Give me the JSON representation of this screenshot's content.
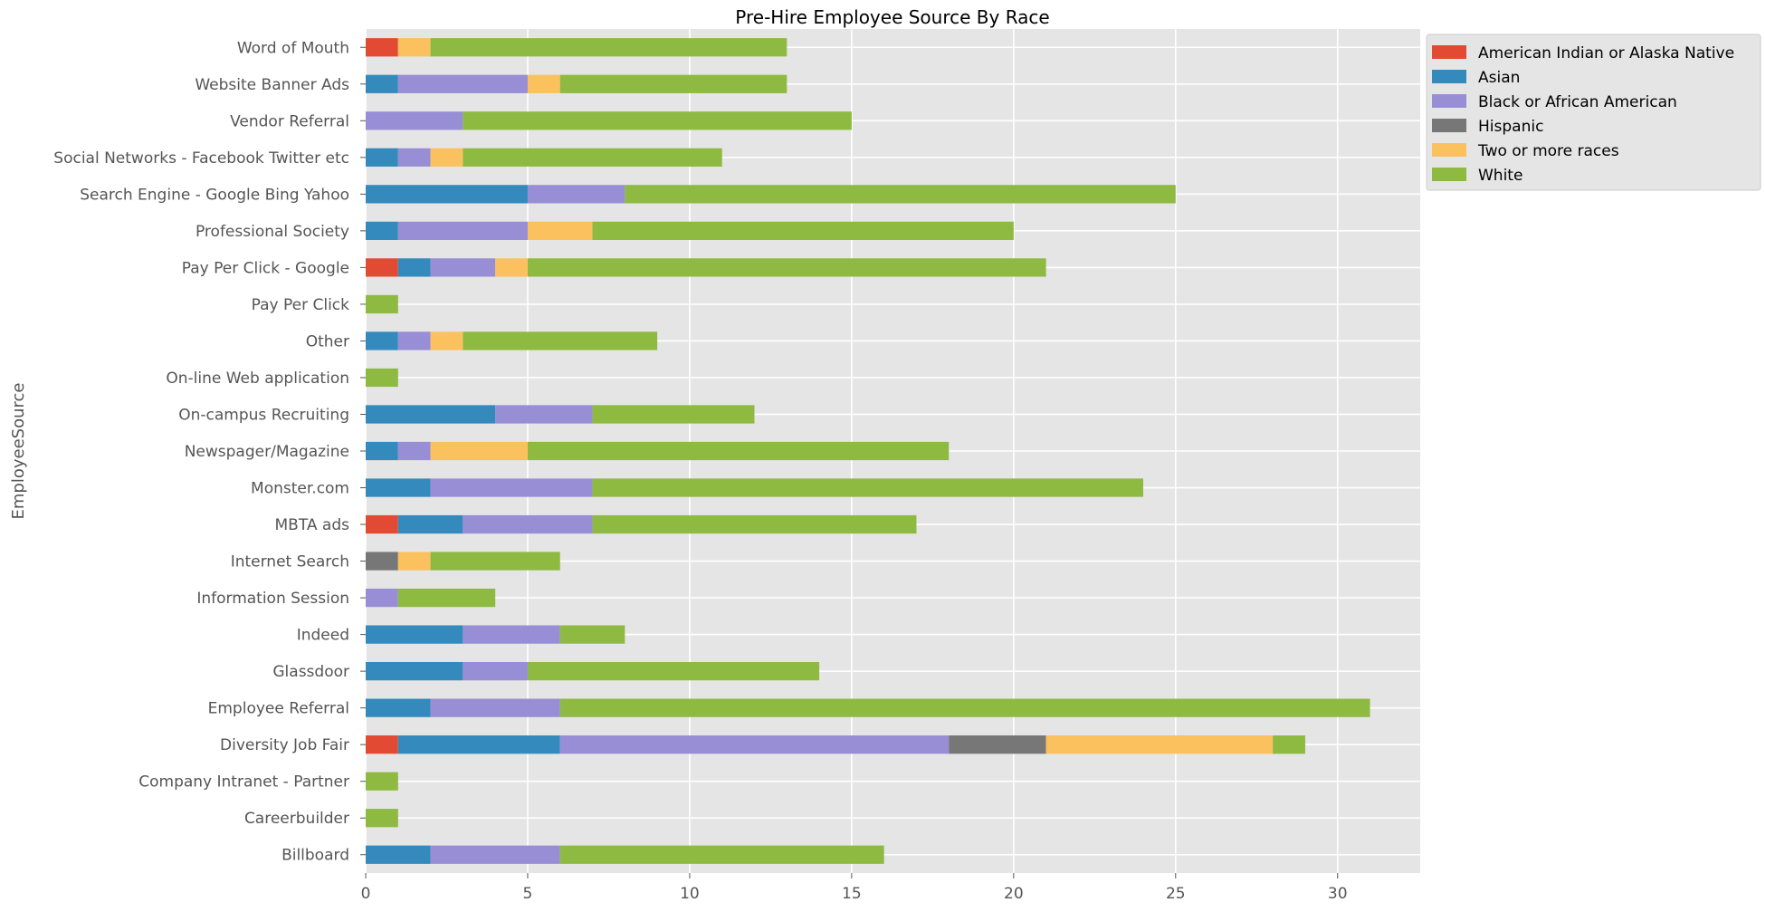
{
  "chart_data": {
    "type": "bar",
    "orientation": "horizontal",
    "stacked": true,
    "title": "Pre-Hire Employee Source By Race",
    "xlabel": "",
    "ylabel": "EmployeeSource",
    "xlim": [
      0,
      32.55
    ],
    "xticks": [
      0,
      5,
      10,
      15,
      20,
      25,
      30
    ],
    "grid": true,
    "legend_position": "top-right, outside plot",
    "colors": {
      "plot_background": "#E5E5E5",
      "grid": "#FFFFFF",
      "text": "#555555",
      "title": "#000000"
    },
    "categories": [
      "Billboard",
      "Careerbuilder",
      "Company Intranet - Partner",
      "Diversity Job Fair",
      "Employee Referral",
      "Glassdoor",
      "Indeed",
      "Information Session",
      "Internet Search",
      "MBTA ads",
      "Monster.com",
      "Newspager/Magazine",
      "On-campus Recruiting",
      "On-line Web application",
      "Other",
      "Pay Per Click",
      "Pay Per Click - Google",
      "Professional Society",
      "Search Engine - Google Bing Yahoo",
      "Social Networks - Facebook Twitter etc",
      "Vendor Referral",
      "Website Banner Ads",
      "Word of Mouth"
    ],
    "series": [
      {
        "name": "American Indian or Alaska Native",
        "color": "#E24A33",
        "values": [
          0,
          0,
          0,
          1,
          0,
          0,
          0,
          0,
          0,
          1,
          0,
          0,
          0,
          0,
          0,
          0,
          1,
          0,
          0,
          0,
          0,
          0,
          1
        ]
      },
      {
        "name": "Asian",
        "color": "#348ABD",
        "values": [
          2,
          0,
          0,
          5,
          2,
          3,
          3,
          0,
          0,
          2,
          2,
          1,
          4,
          0,
          1,
          0,
          1,
          1,
          5,
          1,
          0,
          1,
          0
        ]
      },
      {
        "name": "Black or African American",
        "color": "#988ED5",
        "values": [
          4,
          0,
          0,
          12,
          4,
          2,
          3,
          1,
          0,
          4,
          5,
          1,
          3,
          0,
          1,
          0,
          2,
          4,
          3,
          1,
          3,
          4,
          0
        ]
      },
      {
        "name": "Hispanic",
        "color": "#777777",
        "values": [
          0,
          0,
          0,
          3,
          0,
          0,
          0,
          0,
          1,
          0,
          0,
          0,
          0,
          0,
          0,
          0,
          0,
          0,
          0,
          0,
          0,
          0,
          0
        ]
      },
      {
        "name": "Two or more races",
        "color": "#FBC15E",
        "values": [
          0,
          0,
          0,
          7,
          0,
          0,
          0,
          0,
          1,
          0,
          0,
          3,
          0,
          0,
          1,
          0,
          1,
          2,
          0,
          1,
          0,
          1,
          1
        ]
      },
      {
        "name": "White",
        "color": "#8EBA42",
        "values": [
          10,
          1,
          1,
          1,
          25,
          9,
          2,
          3,
          4,
          10,
          17,
          13,
          5,
          1,
          6,
          1,
          16,
          13,
          17,
          8,
          12,
          7,
          11
        ]
      }
    ]
  }
}
